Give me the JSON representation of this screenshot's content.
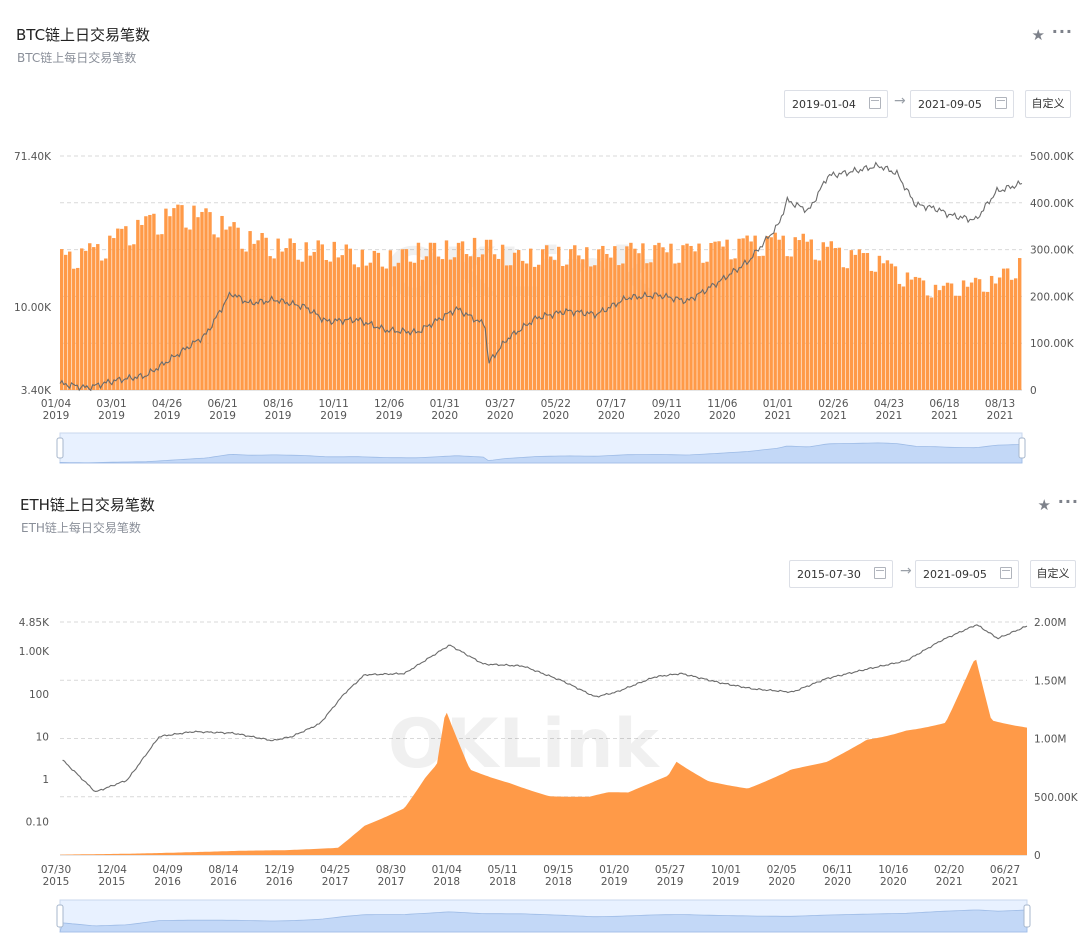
{
  "panels": [
    {
      "title": "BTC链上日交易笔数",
      "subtitle": "BTC链上每日交易笔数",
      "start_date": "2019-01-04",
      "end_date": "2021-09-05",
      "custom_label": "自定义",
      "watermark": "OKLink"
    },
    {
      "title": "ETH链上日交易笔数",
      "subtitle": "ETH链上每日交易笔数",
      "start_date": "2015-07-30",
      "end_date": "2021-09-05",
      "custom_label": "自定义",
      "watermark": "OKLink"
    }
  ],
  "icons": {
    "favorite": "star-icon",
    "more": "more-icon",
    "calendar": "calendar-icon",
    "arrow": "arrow-right-icon"
  },
  "colors": {
    "bar": "#ff9a48",
    "line": "#6b6b6b",
    "grid": "#d9d9d9",
    "slider": "#d6e6ff"
  },
  "chart_data": [
    {
      "type": "bar",
      "x_tick_labels": [
        [
          "01/04",
          "2019"
        ],
        [
          "03/01",
          "2019"
        ],
        [
          "04/26",
          "2019"
        ],
        [
          "06/21",
          "2019"
        ],
        [
          "08/16",
          "2019"
        ],
        [
          "10/11",
          "2019"
        ],
        [
          "12/06",
          "2019"
        ],
        [
          "01/31",
          "2020"
        ],
        [
          "03/27",
          "2020"
        ],
        [
          "05/22",
          "2020"
        ],
        [
          "07/17",
          "2020"
        ],
        [
          "09/11",
          "2020"
        ],
        [
          "11/06",
          "2020"
        ],
        [
          "01/01",
          "2021"
        ],
        [
          "02/26",
          "2021"
        ],
        [
          "04/23",
          "2021"
        ],
        [
          "06/18",
          "2021"
        ],
        [
          "08/13",
          "2021"
        ]
      ],
      "y_left_ticks": [
        "71.40K",
        "10.00K",
        "3.40K"
      ],
      "y_left_log_values": [
        71400,
        10000,
        3400
      ],
      "y_right_ticks": [
        "500.00K",
        "400.00K",
        "300.00K",
        "200.00K",
        "100.00K",
        "0"
      ],
      "y_right_values": [
        500000,
        400000,
        300000,
        200000,
        100000,
        0
      ],
      "y_left_scale": "log",
      "bar_series": {
        "axis": "right",
        "x": [
          "2019-01-04",
          "2019-02-10",
          "2019-03-10",
          "2019-04-10",
          "2019-05-10",
          "2019-06-10",
          "2019-07-10",
          "2019-08-10",
          "2019-09-10",
          "2019-10-10",
          "2019-11-10",
          "2019-12-10",
          "2020-01-10",
          "2020-02-10",
          "2020-03-10",
          "2020-04-10",
          "2020-05-10",
          "2020-06-10",
          "2020-07-10",
          "2020-08-10",
          "2020-09-10",
          "2020-10-10",
          "2020-11-10",
          "2020-12-10",
          "2021-01-10",
          "2021-02-10",
          "2021-03-10",
          "2021-04-10",
          "2021-05-10",
          "2021-06-10",
          "2021-07-10",
          "2021-08-10",
          "2021-09-05"
        ],
        "values": [
          300000,
          320000,
          360000,
          390000,
          410000,
          390000,
          350000,
          330000,
          320000,
          320000,
          300000,
          300000,
          320000,
          320000,
          330000,
          300000,
          310000,
          310000,
          310000,
          320000,
          320000,
          320000,
          330000,
          340000,
          340000,
          330000,
          310000,
          300000,
          260000,
          230000,
          240000,
          250000,
          290000
        ]
      },
      "line_series": {
        "axis": "left",
        "x": [
          "2019-01-04",
          "2019-02-01",
          "2019-03-01",
          "2019-04-01",
          "2019-05-01",
          "2019-06-01",
          "2019-06-26",
          "2019-07-15",
          "2019-08-10",
          "2019-09-10",
          "2019-10-01",
          "2019-11-01",
          "2019-12-01",
          "2020-01-01",
          "2020-02-10",
          "2020-03-10",
          "2020-03-13",
          "2020-04-01",
          "2020-05-01",
          "2020-06-01",
          "2020-07-01",
          "2020-08-01",
          "2020-09-01",
          "2020-10-01",
          "2020-11-01",
          "2020-12-01",
          "2021-01-01",
          "2021-01-10",
          "2021-02-01",
          "2021-02-20",
          "2021-03-15",
          "2021-04-13",
          "2021-05-01",
          "2021-05-20",
          "2021-06-10",
          "2021-06-25",
          "2021-07-20",
          "2021-08-10",
          "2021-09-05"
        ],
        "values": [
          3700,
          3500,
          3850,
          4100,
          5300,
          7000,
          12000,
          10500,
          11000,
          10000,
          8300,
          8500,
          7400,
          7200,
          9800,
          7900,
          4800,
          6600,
          8700,
          9500,
          9100,
          11300,
          11700,
          10800,
          13800,
          18000,
          29000,
          40000,
          35000,
          55000,
          58000,
          63000,
          57000,
          38000,
          36000,
          33000,
          31000,
          45000,
          50000
        ]
      },
      "slider": true
    },
    {
      "type": "area",
      "x_tick_labels": [
        [
          "07/30",
          "2015"
        ],
        [
          "12/04",
          "2015"
        ],
        [
          "04/09",
          "2016"
        ],
        [
          "08/14",
          "2016"
        ],
        [
          "12/19",
          "2016"
        ],
        [
          "04/25",
          "2017"
        ],
        [
          "08/30",
          "2017"
        ],
        [
          "01/04",
          "2018"
        ],
        [
          "05/11",
          "2018"
        ],
        [
          "09/15",
          "2018"
        ],
        [
          "01/20",
          "2019"
        ],
        [
          "05/27",
          "2019"
        ],
        [
          "10/01",
          "2019"
        ],
        [
          "02/05",
          "2020"
        ],
        [
          "06/11",
          "2020"
        ],
        [
          "10/16",
          "2020"
        ],
        [
          "02/20",
          "2021"
        ],
        [
          "06/27",
          "2021"
        ]
      ],
      "y_left_ticks": [
        "4.85K",
        "1.00K",
        "100",
        "10",
        "1",
        "0.10"
      ],
      "y_left_log_values": [
        4850,
        1000,
        100,
        10,
        1,
        0.1
      ],
      "y_right_ticks": [
        "2.00M",
        "1.50M",
        "1.00M",
        "500.00K",
        "0"
      ],
      "y_right_values": [
        2000000,
        1500000,
        1000000,
        500000,
        0
      ],
      "y_left_scale": "log",
      "area_series": {
        "axis": "right",
        "x": [
          "2015-07-30",
          "2016-01-01",
          "2016-07-01",
          "2017-01-01",
          "2017-05-01",
          "2017-07-01",
          "2017-10-01",
          "2017-12-15",
          "2018-01-04",
          "2018-03-01",
          "2018-06-01",
          "2018-09-01",
          "2018-12-01",
          "2019-03-01",
          "2019-06-01",
          "2019-06-20",
          "2019-09-01",
          "2019-12-01",
          "2020-03-01",
          "2020-06-01",
          "2020-09-01",
          "2020-12-01",
          "2021-03-01",
          "2021-05-10",
          "2021-06-15",
          "2021-09-05"
        ],
        "values": [
          3000,
          12000,
          30000,
          45000,
          70000,
          280000,
          420000,
          800000,
          1300000,
          800000,
          700000,
          560000,
          520000,
          560000,
          760000,
          900000,
          720000,
          620000,
          720000,
          860000,
          1120000,
          1200000,
          1200000,
          1700000,
          1200000,
          1210000
        ]
      },
      "line_series": {
        "axis": "left",
        "x": [
          "2015-08-05",
          "2015-10-20",
          "2016-01-01",
          "2016-03-15",
          "2016-06-01",
          "2016-09-01",
          "2016-12-01",
          "2017-01-15",
          "2017-03-20",
          "2017-05-15",
          "2017-07-01",
          "2017-10-01",
          "2018-01-13",
          "2018-04-01",
          "2018-07-01",
          "2018-10-01",
          "2018-12-15",
          "2019-02-01",
          "2019-05-01",
          "2019-07-01",
          "2019-10-01",
          "2019-12-15",
          "2020-03-13",
          "2020-06-01",
          "2020-09-01",
          "2020-12-01",
          "2021-02-20",
          "2021-05-12",
          "2021-06-30",
          "2021-09-05"
        ],
        "values": [
          2.8,
          0.5,
          0.95,
          10,
          13,
          12,
          8,
          10,
          20,
          100,
          280,
          300,
          1400,
          500,
          450,
          200,
          85,
          110,
          250,
          300,
          180,
          130,
          110,
          230,
          380,
          600,
          1800,
          4200,
          2000,
          3900
        ]
      },
      "slider": true
    }
  ]
}
